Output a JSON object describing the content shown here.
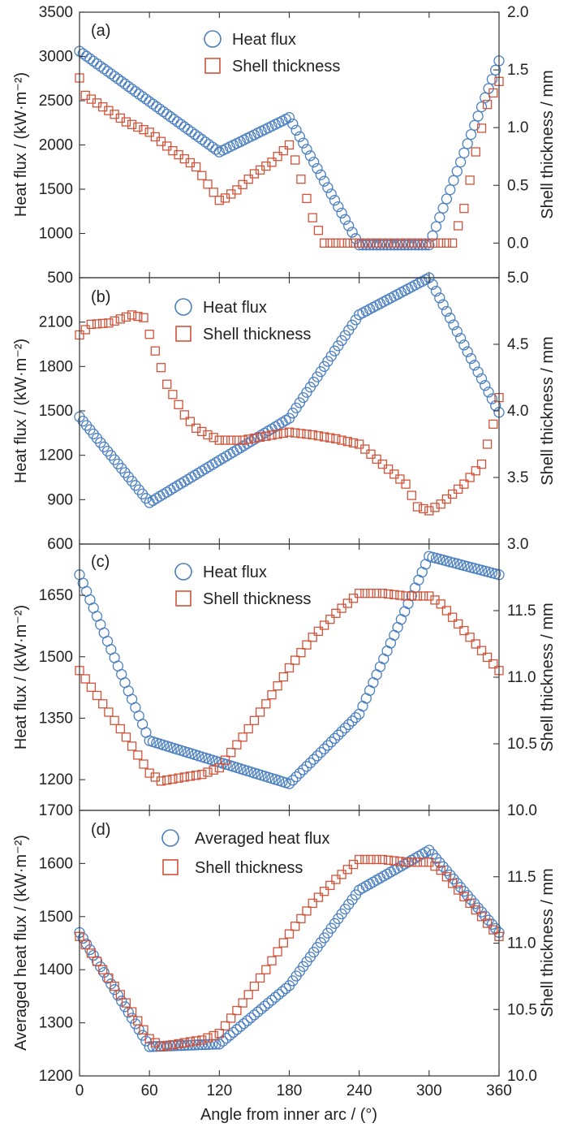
{
  "colors": {
    "heat_flux": "#4a7fc1",
    "shell_thickness": "#d0533a",
    "axes": "#333333"
  },
  "figure": {
    "xlabel": "Angle from inner arc / (°)"
  },
  "chart_data": [
    {
      "type": "scatter",
      "panel": "(a)",
      "xlim": [
        0,
        360
      ],
      "xticks": [
        0,
        60,
        120,
        180,
        240,
        300,
        360
      ],
      "ylabel_left": "Heat flux / (kW·m⁻²)",
      "ylim_left": [
        500,
        3500
      ],
      "yticks_left": [
        500,
        1000,
        1500,
        2000,
        2500,
        3000,
        3500
      ],
      "ylabel_right": "Shell thickness / mm",
      "ylim_right": [
        -0.3,
        2.0
      ],
      "yticks_right": [
        "0.0",
        "0.5",
        "1.0",
        "1.5",
        "2.0"
      ],
      "legend": [
        "Heat flux",
        "Shell thickness"
      ],
      "series": [
        {
          "name": "Heat flux",
          "axis": "left",
          "marker": "circle",
          "points": [
            [
              0,
              3060
            ],
            [
              120,
              1920
            ],
            [
              180,
              2310
            ],
            [
              240,
              870
            ],
            [
              300,
              870
            ],
            [
              360,
              2950
            ]
          ]
        },
        {
          "name": "Shell thickness",
          "axis": "right",
          "marker": "square",
          "points": [
            [
              0,
              1.43
            ],
            [
              5,
              1.28
            ],
            [
              20,
              1.18
            ],
            [
              40,
              1.05
            ],
            [
              60,
              0.96
            ],
            [
              80,
              0.8
            ],
            [
              100,
              0.66
            ],
            [
              110,
              0.51
            ],
            [
              120,
              0.37
            ],
            [
              125,
              0.39
            ],
            [
              135,
              0.46
            ],
            [
              150,
              0.6
            ],
            [
              165,
              0.7
            ],
            [
              180,
              0.85
            ],
            [
              185,
              0.72
            ],
            [
              200,
              0.22
            ],
            [
              210,
              0.0
            ],
            [
              320,
              0.0
            ],
            [
              330,
              0.3
            ],
            [
              340,
              0.79
            ],
            [
              350,
              1.2
            ],
            [
              360,
              1.4
            ]
          ]
        }
      ]
    },
    {
      "type": "scatter",
      "panel": "(b)",
      "xlim": [
        0,
        360
      ],
      "xticks": [
        0,
        60,
        120,
        180,
        240,
        300,
        360
      ],
      "ylabel_left": "Heat flux / (kW·m⁻²)",
      "ylim_left": [
        600,
        2400
      ],
      "yticks_left": [
        600,
        900,
        1200,
        1500,
        1800,
        2100
      ],
      "ylabel_right": "Shell thickness / mm",
      "ylim_right": [
        3.0,
        5.0
      ],
      "yticks_right": [
        "3.0",
        "3.5",
        "4.0",
        "4.5",
        "5.0"
      ],
      "legend": [
        "Heat flux",
        "Shell thickness"
      ],
      "series": [
        {
          "name": "Heat flux",
          "axis": "left",
          "marker": "circle",
          "points": [
            [
              0,
              1460
            ],
            [
              60,
              880
            ],
            [
              180,
              1450
            ],
            [
              240,
              2150
            ],
            [
              300,
              2400
            ],
            [
              360,
              1490
            ]
          ]
        },
        {
          "name": "Shell thickness",
          "axis": "right",
          "marker": "square",
          "points": [
            [
              0,
              4.57
            ],
            [
              10,
              4.65
            ],
            [
              25,
              4.66
            ],
            [
              45,
              4.72
            ],
            [
              55,
              4.7
            ],
            [
              65,
              4.45
            ],
            [
              75,
              4.2
            ],
            [
              90,
              3.97
            ],
            [
              100,
              3.87
            ],
            [
              110,
              3.82
            ],
            [
              120,
              3.78
            ],
            [
              140,
              3.78
            ],
            [
              160,
              3.81
            ],
            [
              180,
              3.84
            ],
            [
              200,
              3.82
            ],
            [
              220,
              3.79
            ],
            [
              240,
              3.75
            ],
            [
              260,
              3.6
            ],
            [
              280,
              3.45
            ],
            [
              290,
              3.28
            ],
            [
              300,
              3.25
            ],
            [
              310,
              3.3
            ],
            [
              330,
              3.45
            ],
            [
              345,
              3.6
            ],
            [
              355,
              3.9
            ],
            [
              360,
              4.1
            ]
          ]
        }
      ]
    },
    {
      "type": "scatter",
      "panel": "(c)",
      "xlim": [
        0,
        360
      ],
      "xticks": [
        0,
        60,
        120,
        180,
        240,
        300,
        360
      ],
      "ylabel_left": "Heat flux / (kW·m⁻²)",
      "ylim_left": [
        1125,
        1775
      ],
      "yticks_left": [
        1200,
        1350,
        1500,
        1650
      ],
      "ylabel_right": "Shell thickness / mm",
      "ylim_right": [
        10.0,
        12.0
      ],
      "yticks_right": [
        "10.0",
        "10.5",
        "11.0",
        "11.5"
      ],
      "legend": [
        "Heat flux",
        "Shell thickness"
      ],
      "series": [
        {
          "name": "Heat flux",
          "axis": "left",
          "marker": "circle",
          "points": [
            [
              0,
              1700
            ],
            [
              60,
              1295
            ],
            [
              180,
              1190
            ],
            [
              240,
              1360
            ],
            [
              300,
              1745
            ],
            [
              360,
              1700
            ]
          ]
        },
        {
          "name": "Shell thickness",
          "axis": "right",
          "marker": "square",
          "points": [
            [
              0,
              11.05
            ],
            [
              20,
              10.8
            ],
            [
              40,
              10.55
            ],
            [
              60,
              10.28
            ],
            [
              70,
              10.22
            ],
            [
              90,
              10.25
            ],
            [
              105,
              10.27
            ],
            [
              120,
              10.32
            ],
            [
              140,
              10.55
            ],
            [
              160,
              10.8
            ],
            [
              180,
              11.07
            ],
            [
              200,
              11.3
            ],
            [
              220,
              11.48
            ],
            [
              240,
              11.63
            ],
            [
              260,
              11.63
            ],
            [
              280,
              11.61
            ],
            [
              300,
              11.61
            ],
            [
              310,
              11.55
            ],
            [
              320,
              11.45
            ],
            [
              340,
              11.25
            ],
            [
              360,
              11.05
            ]
          ]
        }
      ]
    },
    {
      "type": "scatter",
      "panel": "(d)",
      "xlim": [
        0,
        360
      ],
      "xticks": [
        0,
        60,
        120,
        180,
        240,
        300,
        360
      ],
      "ylabel_left": "Averaged heat flux / (kW·m⁻²)",
      "ylim_left": [
        1200,
        1700
      ],
      "yticks_left": [
        1200,
        1300,
        1400,
        1500,
        1600,
        1700
      ],
      "ylabel_right": "Shell thickness / mm",
      "ylim_right": [
        10.0,
        12.0
      ],
      "yticks_right": [
        "10.0",
        "10.5",
        "11.0",
        "11.5"
      ],
      "legend": [
        "Averaged heat flux",
        "Shell thickness"
      ],
      "series": [
        {
          "name": "Averaged heat flux",
          "axis": "left",
          "marker": "circle",
          "points": [
            [
              0,
              1470
            ],
            [
              60,
              1255
            ],
            [
              120,
              1260
            ],
            [
              180,
              1370
            ],
            [
              240,
              1550
            ],
            [
              300,
              1625
            ],
            [
              360,
              1470
            ]
          ]
        },
        {
          "name": "Shell thickness",
          "axis": "right",
          "marker": "square",
          "points": [
            [
              0,
              11.05
            ],
            [
              20,
              10.8
            ],
            [
              40,
              10.55
            ],
            [
              60,
              10.28
            ],
            [
              70,
              10.22
            ],
            [
              90,
              10.25
            ],
            [
              105,
              10.27
            ],
            [
              120,
              10.32
            ],
            [
              140,
              10.55
            ],
            [
              160,
              10.8
            ],
            [
              180,
              11.07
            ],
            [
              200,
              11.3
            ],
            [
              220,
              11.48
            ],
            [
              240,
              11.63
            ],
            [
              260,
              11.63
            ],
            [
              280,
              11.61
            ],
            [
              300,
              11.61
            ],
            [
              310,
              11.55
            ],
            [
              320,
              11.45
            ],
            [
              340,
              11.25
            ],
            [
              360,
              11.05
            ]
          ]
        }
      ]
    }
  ]
}
